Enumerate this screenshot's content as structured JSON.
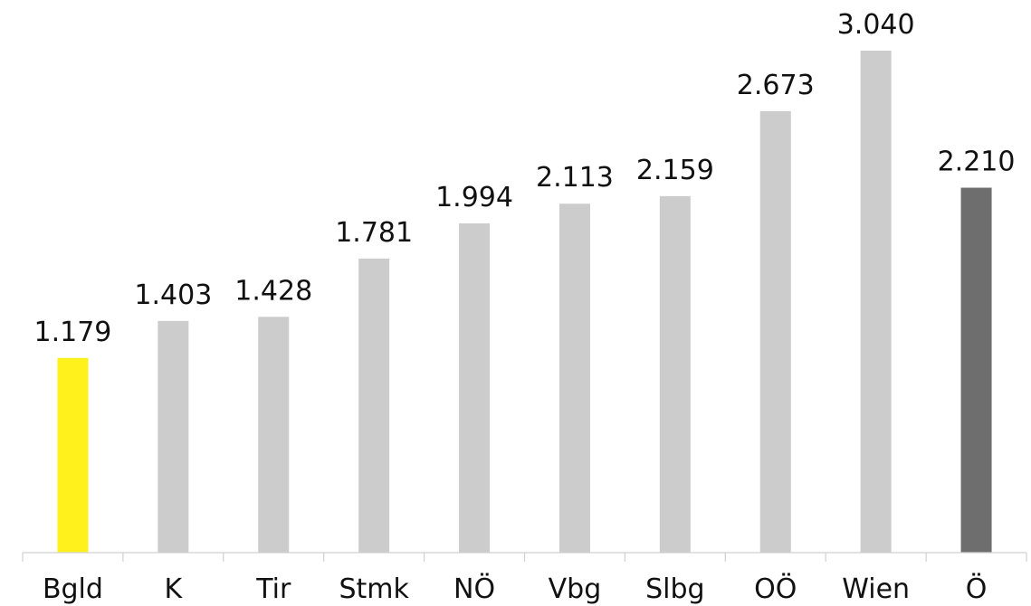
{
  "chart_data": {
    "type": "bar",
    "title": "",
    "xlabel": "",
    "ylabel": "",
    "categories": [
      "Bgld",
      "K",
      "Tir",
      "Stmk",
      "NÖ",
      "Vbg",
      "Slbg",
      "OÖ",
      "Wien",
      "Ö"
    ],
    "values": [
      1179,
      1403,
      1428,
      1781,
      1994,
      2113,
      2159,
      2673,
      3040,
      2210
    ],
    "value_labels": [
      "1.179",
      "1.403",
      "1.428",
      "1.781",
      "1.994",
      "2.113",
      "2.159",
      "2.673",
      "3.040",
      "2.210"
    ],
    "bar_colors": [
      "#fff11c",
      "#cccccc",
      "#cccccc",
      "#cccccc",
      "#cccccc",
      "#cccccc",
      "#cccccc",
      "#cccccc",
      "#cccccc",
      "#6e6e6e"
    ],
    "ylim": [
      0,
      3040
    ],
    "grid": false,
    "legend": "none"
  }
}
